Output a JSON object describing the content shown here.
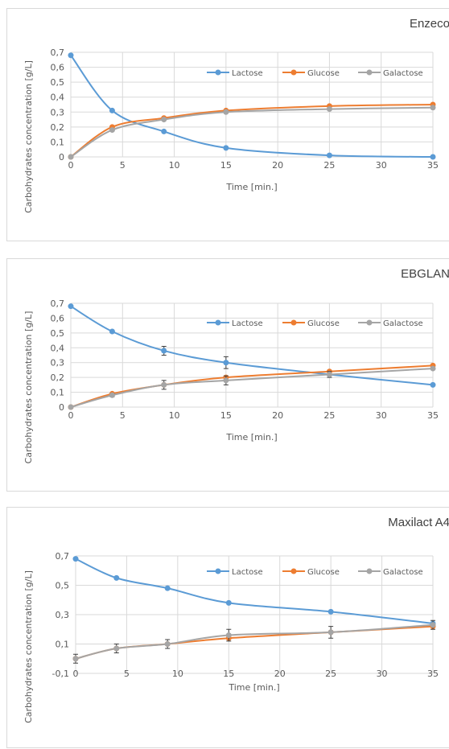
{
  "chart_data": [
    {
      "type": "line",
      "title": "Enzeco",
      "xlabel": "Time [min.]",
      "ylabel": "Carbohydrates concentration [g/L]",
      "x": [
        0,
        4,
        9,
        15,
        25,
        35
      ],
      "xlim": [
        0,
        35
      ],
      "xticks": [
        "0",
        "5",
        "10",
        "15",
        "20",
        "25",
        "30",
        "35"
      ],
      "xtick_values": [
        0,
        5,
        10,
        15,
        20,
        25,
        30,
        35
      ],
      "ylim": [
        0,
        0.7
      ],
      "yticks": [
        "0",
        "0,1",
        "0,2",
        "0,3",
        "0,4",
        "0,5",
        "0,6",
        "0,7"
      ],
      "ytick_values": [
        0,
        0.1,
        0.2,
        0.3,
        0.4,
        0.5,
        0.6,
        0.7
      ],
      "grid": true,
      "legend": "top-right",
      "series": [
        {
          "name": "Lactose",
          "color": "#5b9bd5",
          "values": [
            0.68,
            0.31,
            0.17,
            0.06,
            0.01,
            0.0
          ]
        },
        {
          "name": "Glucose",
          "color": "#ed7d31",
          "values": [
            0.0,
            0.2,
            0.26,
            0.31,
            0.34,
            0.35
          ]
        },
        {
          "name": "Galactose",
          "color": "#a5a5a5",
          "values": [
            0.0,
            0.18,
            0.25,
            0.3,
            0.32,
            0.33
          ]
        }
      ]
    },
    {
      "type": "line",
      "title": "EBGLAN",
      "xlabel": "Time [min.]",
      "ylabel": "Carbohydrates concentration [g/L]",
      "x": [
        0,
        4,
        9,
        15,
        25,
        35
      ],
      "xlim": [
        0,
        35
      ],
      "xticks": [
        "0",
        "5",
        "10",
        "15",
        "20",
        "25",
        "30",
        "35"
      ],
      "xtick_values": [
        0,
        5,
        10,
        15,
        20,
        25,
        30,
        35
      ],
      "ylim": [
        0,
        0.7
      ],
      "yticks": [
        "0",
        "0,1",
        "0,2",
        "0,3",
        "0,4",
        "0,5",
        "0,6",
        "0,7"
      ],
      "ytick_values": [
        0,
        0.1,
        0.2,
        0.3,
        0.4,
        0.5,
        0.6,
        0.7
      ],
      "grid": true,
      "legend": "top-right",
      "series": [
        {
          "name": "Lactose",
          "color": "#5b9bd5",
          "values": [
            0.68,
            0.51,
            0.38,
            0.3,
            0.22,
            0.15
          ],
          "errors": [
            0,
            0,
            0.03,
            0.04,
            0,
            0
          ]
        },
        {
          "name": "Glucose",
          "color": "#ed7d31",
          "values": [
            0.0,
            0.09,
            0.15,
            0.2,
            0.24,
            0.28
          ]
        },
        {
          "name": "Galactose",
          "color": "#a5a5a5",
          "values": [
            0.0,
            0.08,
            0.15,
            0.18,
            0.22,
            0.26
          ],
          "errors": [
            0,
            0.01,
            0.03,
            0.03,
            0.02,
            0
          ]
        }
      ]
    },
    {
      "type": "line",
      "title": "Maxilact A4",
      "xlabel": "Time [min.]",
      "ylabel": "Carbohydrates concentration [g/L]",
      "x": [
        0,
        4,
        9,
        15,
        25,
        35
      ],
      "xlim": [
        0,
        35
      ],
      "xticks": [
        "0",
        "5",
        "10",
        "15",
        "20",
        "25",
        "30",
        "35"
      ],
      "xtick_values": [
        0,
        5,
        10,
        15,
        20,
        25,
        30,
        35
      ],
      "ylim": [
        -0.1,
        0.7
      ],
      "yticks": [
        "-0,1",
        "0,1",
        "0,3",
        "0,5",
        "0,7"
      ],
      "ytick_values": [
        -0.1,
        0.1,
        0.3,
        0.5,
        0.7
      ],
      "grid": true,
      "legend": "top-right",
      "series": [
        {
          "name": "Lactose",
          "color": "#5b9bd5",
          "values": [
            0.68,
            0.55,
            0.48,
            0.38,
            0.32,
            0.24
          ]
        },
        {
          "name": "Glucose",
          "color": "#ed7d31",
          "values": [
            0.0,
            0.07,
            0.1,
            0.14,
            0.18,
            0.22
          ]
        },
        {
          "name": "Galactose",
          "color": "#a5a5a5",
          "values": [
            0.0,
            0.07,
            0.1,
            0.16,
            0.18,
            0.23
          ],
          "errors": [
            0.03,
            0.03,
            0.03,
            0.04,
            0.04,
            0.03
          ]
        }
      ]
    }
  ]
}
